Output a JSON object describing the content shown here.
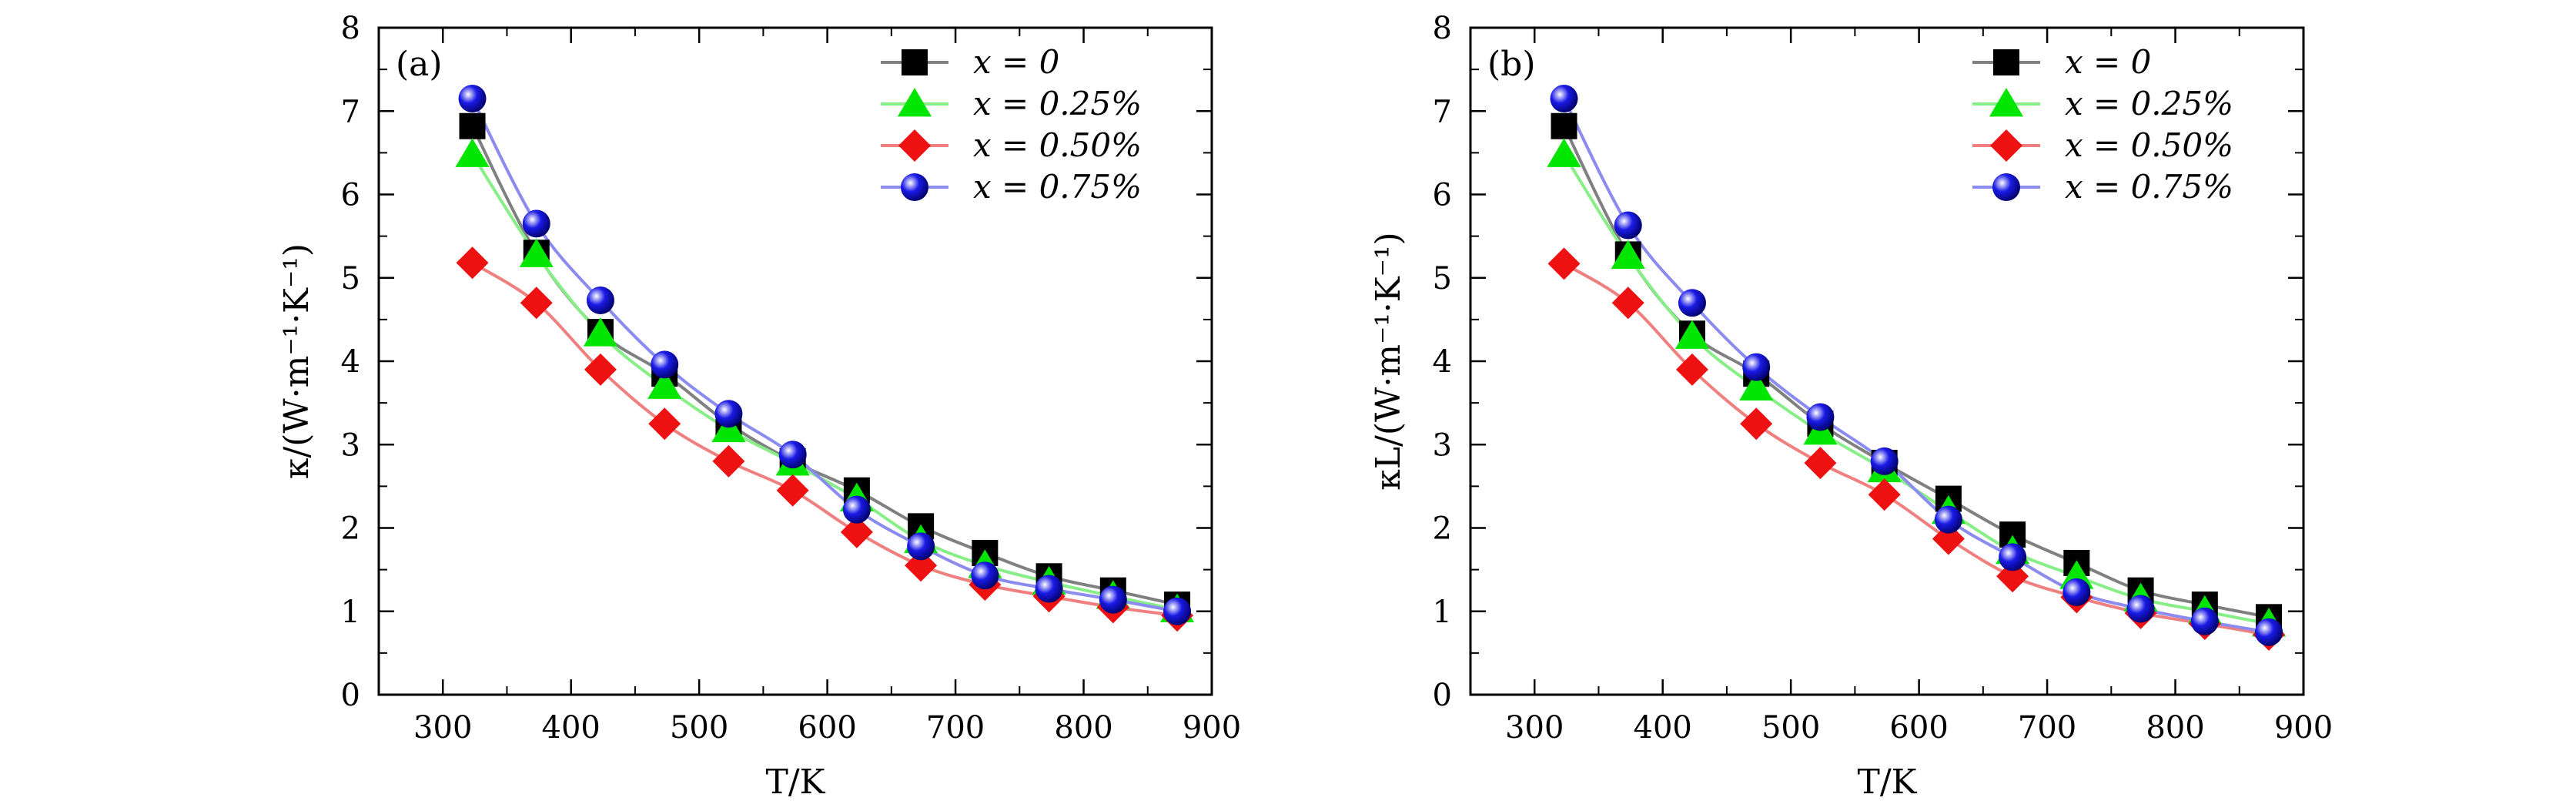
{
  "chart_data": [
    {
      "type": "line",
      "panel_label": "(a)",
      "xlabel": "T/K",
      "ylabel": "κ/(W·m⁻¹·K⁻¹)",
      "xlim": [
        250,
        900
      ],
      "ylim": [
        0,
        8
      ],
      "xticks": [
        300,
        400,
        500,
        600,
        700,
        800,
        900
      ],
      "yticks": [
        0,
        1,
        2,
        3,
        4,
        5,
        6,
        7,
        8
      ],
      "legend_position": "top-right",
      "grid": false,
      "x": [
        323,
        373,
        423,
        473,
        523,
        573,
        623,
        673,
        723,
        773,
        823,
        873
      ],
      "series": [
        {
          "name": "x = 0",
          "color": "#000000",
          "line_color": "#808080",
          "marker": "square",
          "values": [
            6.82,
            5.3,
            4.35,
            3.85,
            3.25,
            2.8,
            2.45,
            2.02,
            1.7,
            1.42,
            1.25,
            1.08
          ]
        },
        {
          "name": "x = 0.25%",
          "color": "#00e600",
          "line_color": "#88ee88",
          "marker": "triangle",
          "values": [
            6.48,
            5.28,
            4.33,
            3.7,
            3.18,
            2.78,
            2.35,
            1.85,
            1.55,
            1.35,
            1.18,
            1.02
          ]
        },
        {
          "name": "x = 0.50%",
          "color": "#ee1111",
          "line_color": "#f08080",
          "marker": "diamond",
          "values": [
            5.18,
            4.7,
            3.9,
            3.25,
            2.8,
            2.45,
            1.95,
            1.55,
            1.32,
            1.18,
            1.05,
            0.95
          ]
        },
        {
          "name": "x = 0.75%",
          "color": "#1a1ae6",
          "line_color": "#8c8cf0",
          "marker": "circle",
          "values": [
            7.15,
            5.65,
            4.73,
            3.96,
            3.37,
            2.88,
            2.22,
            1.78,
            1.43,
            1.27,
            1.14,
            1.0
          ]
        }
      ]
    },
    {
      "type": "line",
      "panel_label": "(b)",
      "xlabel": "T/K",
      "ylabel": "κL/(W·m⁻¹·K⁻¹)",
      "xlim": [
        250,
        900
      ],
      "ylim": [
        0,
        8
      ],
      "xticks": [
        300,
        400,
        500,
        600,
        700,
        800,
        900
      ],
      "yticks": [
        0,
        1,
        2,
        3,
        4,
        5,
        6,
        7,
        8
      ],
      "legend_position": "top-right",
      "grid": false,
      "x": [
        323,
        373,
        423,
        473,
        523,
        573,
        623,
        673,
        723,
        773,
        823,
        873
      ],
      "series": [
        {
          "name": "x = 0",
          "color": "#000000",
          "line_color": "#808080",
          "marker": "square",
          "values": [
            6.82,
            5.28,
            4.33,
            3.85,
            3.25,
            2.78,
            2.35,
            1.92,
            1.58,
            1.25,
            1.08,
            0.93
          ]
        },
        {
          "name": "x = 0.25%",
          "color": "#00e600",
          "line_color": "#88ee88",
          "marker": "triangle",
          "values": [
            6.48,
            5.26,
            4.3,
            3.68,
            3.15,
            2.7,
            2.2,
            1.72,
            1.42,
            1.15,
            1.0,
            0.85
          ]
        },
        {
          "name": "x = 0.50%",
          "color": "#ee1111",
          "line_color": "#f08080",
          "marker": "diamond",
          "values": [
            5.17,
            4.7,
            3.9,
            3.25,
            2.78,
            2.4,
            1.87,
            1.42,
            1.17,
            0.98,
            0.85,
            0.72
          ]
        },
        {
          "name": "x = 0.75%",
          "color": "#1a1ae6",
          "line_color": "#8c8cf0",
          "marker": "circle",
          "values": [
            7.15,
            5.63,
            4.7,
            3.93,
            3.33,
            2.8,
            2.1,
            1.65,
            1.23,
            1.03,
            0.88,
            0.75
          ]
        }
      ]
    }
  ]
}
